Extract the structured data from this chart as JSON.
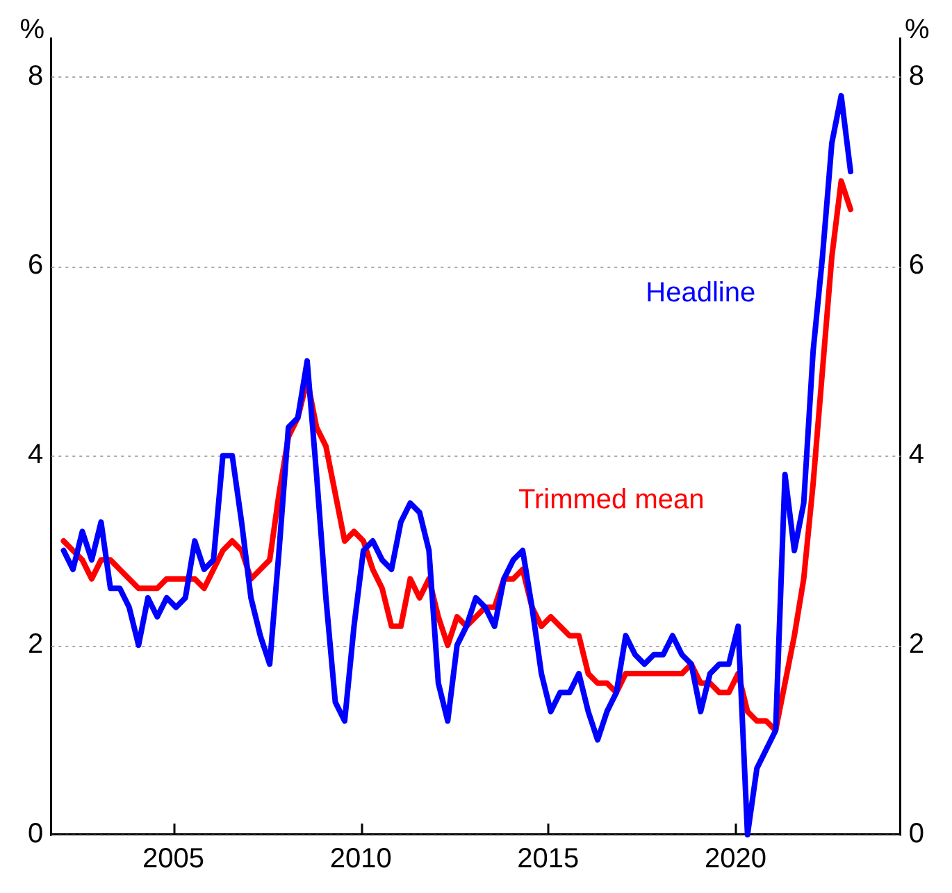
{
  "chart_data": {
    "type": "line",
    "ylabel": "%",
    "y2label": "%",
    "xlim": [
      2001.75,
      2024.4
    ],
    "xticks": [
      2005,
      2010,
      2015,
      2020
    ],
    "ylim": [
      0,
      8.4
    ],
    "yticks": [
      0,
      2,
      4,
      6,
      8
    ],
    "y2lim": [
      0,
      8.4
    ],
    "y2ticks": [
      0,
      2,
      4,
      6,
      8
    ],
    "grid": "y",
    "legend": false,
    "marker": "none",
    "line_style": "solid",
    "x": [
      2002.07,
      2002.32,
      2002.57,
      2002.82,
      2003.07,
      2003.32,
      2003.57,
      2003.82,
      2004.07,
      2004.32,
      2004.57,
      2004.82,
      2005.07,
      2005.32,
      2005.57,
      2005.82,
      2006.07,
      2006.32,
      2006.57,
      2006.82,
      2007.07,
      2007.32,
      2007.57,
      2007.82,
      2008.07,
      2008.32,
      2008.57,
      2008.82,
      2009.07,
      2009.32,
      2009.57,
      2009.82,
      2010.07,
      2010.32,
      2010.57,
      2010.82,
      2011.07,
      2011.32,
      2011.57,
      2011.82,
      2012.07,
      2012.32,
      2012.57,
      2012.82,
      2013.07,
      2013.32,
      2013.57,
      2013.82,
      2014.07,
      2014.32,
      2014.57,
      2014.82,
      2015.07,
      2015.32,
      2015.57,
      2015.82,
      2016.07,
      2016.32,
      2016.57,
      2016.82,
      2017.07,
      2017.32,
      2017.57,
      2017.82,
      2018.07,
      2018.32,
      2018.57,
      2018.82,
      2019.07,
      2019.32,
      2019.57,
      2019.82,
      2020.07,
      2020.32,
      2020.57,
      2020.82,
      2021.07,
      2021.32,
      2021.57,
      2021.82,
      2022.07,
      2022.32,
      2022.57,
      2022.82,
      2023.07
    ],
    "series": [
      {
        "name": "Headline",
        "color": "#0000ff",
        "values": [
          3.0,
          2.8,
          3.2,
          2.9,
          3.3,
          2.6,
          2.6,
          2.4,
          2.0,
          2.5,
          2.3,
          2.5,
          2.4,
          2.5,
          3.1,
          2.8,
          2.9,
          4.0,
          4.0,
          3.3,
          2.5,
          2.1,
          1.8,
          3.0,
          4.3,
          4.4,
          5.0,
          3.8,
          2.5,
          1.4,
          1.2,
          2.2,
          3.0,
          3.1,
          2.9,
          2.8,
          3.3,
          3.5,
          3.4,
          3.0,
          1.6,
          1.2,
          2.0,
          2.2,
          2.5,
          2.4,
          2.2,
          2.7,
          2.9,
          3.0,
          2.4,
          1.7,
          1.3,
          1.5,
          1.5,
          1.7,
          1.3,
          1.0,
          1.3,
          1.5,
          2.1,
          1.9,
          1.8,
          1.9,
          1.9,
          2.1,
          1.9,
          1.8,
          1.3,
          1.7,
          1.8,
          1.8,
          2.2,
          0,
          0.7,
          0.9,
          1.1,
          3.8,
          3.0,
          3.5,
          5.1,
          6.1,
          7.3,
          7.8,
          7.0
        ]
      },
      {
        "name": "Trimmed mean",
        "color": "#ff0000",
        "values": [
          3.1,
          3.0,
          2.9,
          2.7,
          2.9,
          2.9,
          2.8,
          2.7,
          2.6,
          2.6,
          2.6,
          2.7,
          2.7,
          2.7,
          2.7,
          2.6,
          2.8,
          3.0,
          3.1,
          3.0,
          2.7,
          2.8,
          2.9,
          3.6,
          4.2,
          4.4,
          4.8,
          4.3,
          4.1,
          3.6,
          3.1,
          3.2,
          3.1,
          2.8,
          2.6,
          2.2,
          2.2,
          2.7,
          2.5,
          2.7,
          2.3,
          2.0,
          2.3,
          2.2,
          2.3,
          2.4,
          2.4,
          2.7,
          2.7,
          2.8,
          2.4,
          2.2,
          2.3,
          2.2,
          2.1,
          2.1,
          1.7,
          1.6,
          1.6,
          1.5,
          1.7,
          1.7,
          1.7,
          1.7,
          1.7,
          1.7,
          1.7,
          1.8,
          1.6,
          1.6,
          1.5,
          1.5,
          1.7,
          1.3,
          1.2,
          1.2,
          1.1,
          1.6,
          2.1,
          2.7,
          3.7,
          4.9,
          6.1,
          6.9,
          6.6
        ]
      }
    ]
  }
}
